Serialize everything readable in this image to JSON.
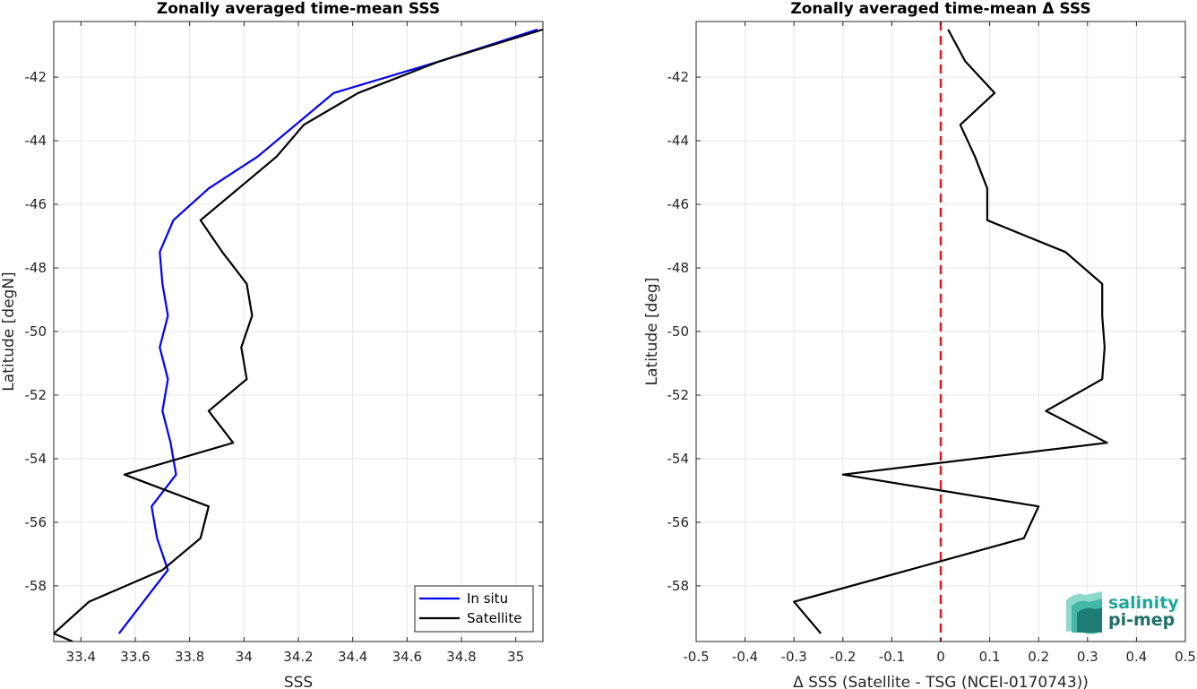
{
  "chart_data": [
    {
      "type": "line",
      "title": "Zonally averaged time-mean SSS",
      "xlabel": "SSS",
      "ylabel": "Latitude [degN]",
      "xlim": [
        33.3,
        35.1
      ],
      "ylim": [
        -59.75,
        -40.25
      ],
      "xticks": [
        33.4,
        33.6,
        33.8,
        34,
        34.2,
        34.4,
        34.6,
        34.8,
        35
      ],
      "xtick_labels": [
        "33.4",
        "33.6",
        "33.8",
        "34",
        "34.2",
        "34.4",
        "34.6",
        "34.8",
        "35"
      ],
      "yticks": [
        -42,
        -44,
        -46,
        -48,
        -50,
        -52,
        -54,
        -56,
        -58
      ],
      "ytick_labels": [
        "-42",
        "-44",
        "-46",
        "-48",
        "-50",
        "-52",
        "-54",
        "-56",
        "-58"
      ],
      "grid": true,
      "legend_position": "bottom-right",
      "series": [
        {
          "name": "In situ",
          "color": "#0000ff",
          "x": [
            35.08,
            34.72,
            34.33,
            34.05,
            33.87,
            33.74,
            33.69,
            33.7,
            33.72,
            33.69,
            33.72,
            33.7,
            33.73,
            33.75,
            33.66,
            33.68,
            33.72,
            33.63,
            33.54
          ],
          "y": [
            -40.5,
            -41.5,
            -42.5,
            -44.5,
            -45.5,
            -46.5,
            -47.5,
            -48.5,
            -49.5,
            -50.5,
            -51.5,
            -52.5,
            -53.5,
            -54.5,
            -55.5,
            -56.5,
            -57.5,
            -58.5,
            -59.5
          ]
        },
        {
          "name": "Satellite",
          "color": "#000000",
          "x": [
            35.1,
            34.72,
            34.42,
            34.22,
            34.12,
            33.98,
            33.84,
            33.92,
            34.01,
            34.03,
            33.99,
            34.01,
            33.87,
            33.96,
            33.56,
            33.87,
            33.84,
            33.7,
            33.43,
            33.3,
            33.37
          ],
          "y": [
            -40.5,
            -41.5,
            -42.5,
            -43.5,
            -44.5,
            -45.5,
            -46.5,
            -47.5,
            -48.5,
            -49.5,
            -50.5,
            -51.5,
            -52.5,
            -53.5,
            -54.5,
            -55.5,
            -56.5,
            -57.5,
            -58.5,
            -59.5,
            -59.75
          ]
        }
      ]
    },
    {
      "type": "line",
      "title": "Zonally averaged time-mean Δ SSS",
      "xlabel": "Δ SSS (Satellite - TSG (NCEI-0170743))",
      "ylabel": "Latitude [deg]",
      "xlim": [
        -0.5,
        0.5
      ],
      "ylim": [
        -59.75,
        -40.25
      ],
      "xticks": [
        -0.5,
        -0.4,
        -0.3,
        -0.2,
        -0.1,
        0,
        0.1,
        0.2,
        0.3,
        0.4,
        0.5
      ],
      "xtick_labels": [
        "-0.5",
        "-0.4",
        "-0.3",
        "-0.2",
        "-0.1",
        "0",
        "0.1",
        "0.2",
        "0.3",
        "0.4",
        "0.5"
      ],
      "yticks": [
        -42,
        -44,
        -46,
        -48,
        -50,
        -52,
        -54,
        -56,
        -58
      ],
      "ytick_labels": [
        "-42",
        "-44",
        "-46",
        "-48",
        "-50",
        "-52",
        "-54",
        "-56",
        "-58"
      ],
      "grid": true,
      "reference_line": {
        "x": 0,
        "color": "#e8191c",
        "style": "dashed"
      },
      "series": [
        {
          "color": "#000000",
          "x": [
            0.015,
            0.05,
            0.11,
            0.04,
            0.07,
            0.095,
            0.095,
            0.255,
            0.33,
            0.33,
            0.335,
            0.33,
            0.215,
            0.34,
            -0.2,
            0.2,
            0.17,
            -0.3,
            -0.245
          ],
          "y": [
            -40.5,
            -41.5,
            -42.5,
            -43.5,
            -44.5,
            -45.5,
            -46.5,
            -47.5,
            -48.5,
            -49.5,
            -50.5,
            -51.5,
            -52.5,
            -53.5,
            -54.5,
            -55.5,
            -56.5,
            -58.5,
            -59.5
          ]
        }
      ]
    }
  ],
  "logo": {
    "line1": "salinity",
    "line2": "pi-mep"
  }
}
